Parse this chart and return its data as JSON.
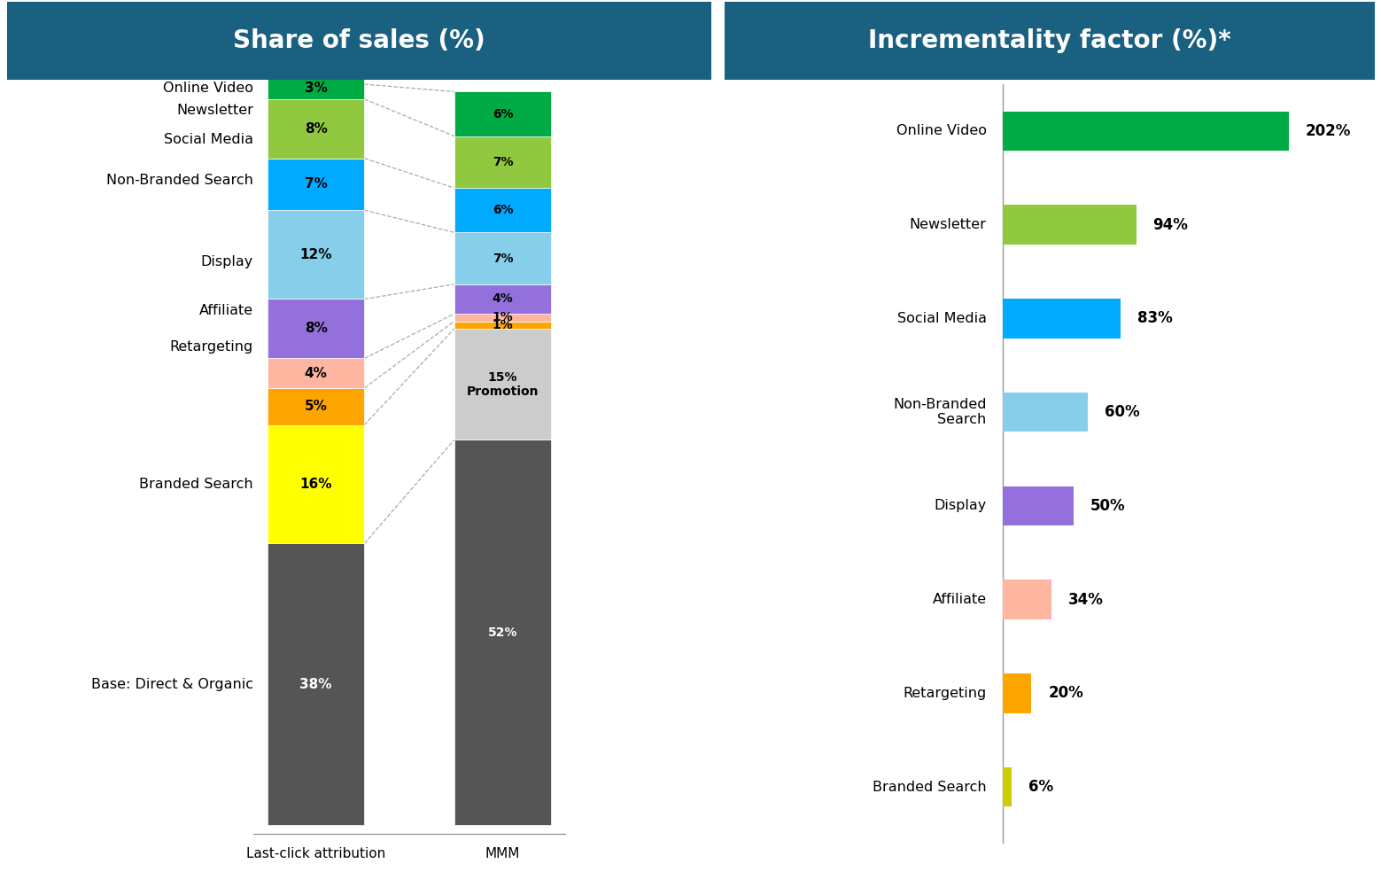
{
  "title_left": "Share of sales (%)",
  "title_right": "Incrementality factor (%)*",
  "title_bg_color": "#1a6080",
  "title_text_color": "#ffffff",
  "background_color": "#ffffff",
  "bar_colors": [
    "#555555",
    "#ffff00",
    "#ffa500",
    "#ffb6a0",
    "#9370db",
    "#87ceeb",
    "#00aaff",
    "#90c940",
    "#00aa44"
  ],
  "promotion_color": "#cccccc",
  "lca_values": [
    38,
    16,
    5,
    4,
    8,
    12,
    7,
    8,
    3
  ],
  "lca_labels": [
    "38%",
    "16%",
    "5%",
    "4%",
    "8%",
    "12%",
    "7%",
    "8%",
    "3%"
  ],
  "lca_label_colors": [
    "white",
    "black",
    "black",
    "black",
    "black",
    "black",
    "black",
    "black",
    "black"
  ],
  "mmm_stack": [
    {
      "val": 52,
      "color_idx": 0,
      "label": "52%",
      "label_color": "white"
    },
    {
      "val": 15,
      "color": "#cccccc",
      "label": "15%\nPromotion",
      "label_color": "black"
    },
    {
      "val": 1,
      "color_idx": 2,
      "label": "1%",
      "label_color": "black"
    },
    {
      "val": 1,
      "color_idx": 3,
      "label": "1%",
      "label_color": "black"
    },
    {
      "val": 4,
      "color_idx": 4,
      "label": "4%",
      "label_color": "black"
    },
    {
      "val": 7,
      "color_idx": 5,
      "label": "7%",
      "label_color": "black"
    },
    {
      "val": 6,
      "color_idx": 6,
      "label": "6%",
      "label_color": "black"
    },
    {
      "val": 7,
      "color_idx": 7,
      "label": "7%",
      "label_color": "black"
    },
    {
      "val": 6,
      "color_idx": 8,
      "label": "6%",
      "label_color": "black"
    }
  ],
  "y_labels": [
    {
      "text": "Base: Direct & Organic",
      "pct_mid": 19
    },
    {
      "text": "Branded Search",
      "pct_mid": 46
    },
    {
      "text": "Retargeting",
      "pct_mid": 64.5
    },
    {
      "text": "Affiliate",
      "pct_mid": 69.5
    },
    {
      "text": "Display",
      "pct_mid": 76
    },
    {
      "text": "Non-Branded Search",
      "pct_mid": 87
    },
    {
      "text": "Social Media",
      "pct_mid": 92.5
    },
    {
      "text": "Newsletter",
      "pct_mid": 96.5
    },
    {
      "text": "Online Video",
      "pct_mid": 99.5
    }
  ],
  "dashed_lines_lca_pct": [
    38,
    54,
    59,
    63,
    71,
    83,
    90,
    98,
    101
  ],
  "dashed_lines_mmm_pct": [
    52,
    67,
    68,
    69,
    73,
    80,
    86,
    93,
    99
  ],
  "inc_categories": [
    "Branded Search",
    "Retargeting",
    "Affiliate",
    "Display",
    "Non-Branded\nSearch",
    "Social Media",
    "Newsletter",
    "Online Video"
  ],
  "inc_values": [
    6,
    20,
    34,
    50,
    60,
    83,
    94,
    202
  ],
  "inc_labels": [
    "6%",
    "20%",
    "34%",
    "50%",
    "60%",
    "83%",
    "94%",
    "202%"
  ],
  "inc_colors": [
    "#cccc00",
    "#ffa500",
    "#ffb6a0",
    "#9370db",
    "#87ceeb",
    "#00aaff",
    "#90c940",
    "#00aa44"
  ]
}
